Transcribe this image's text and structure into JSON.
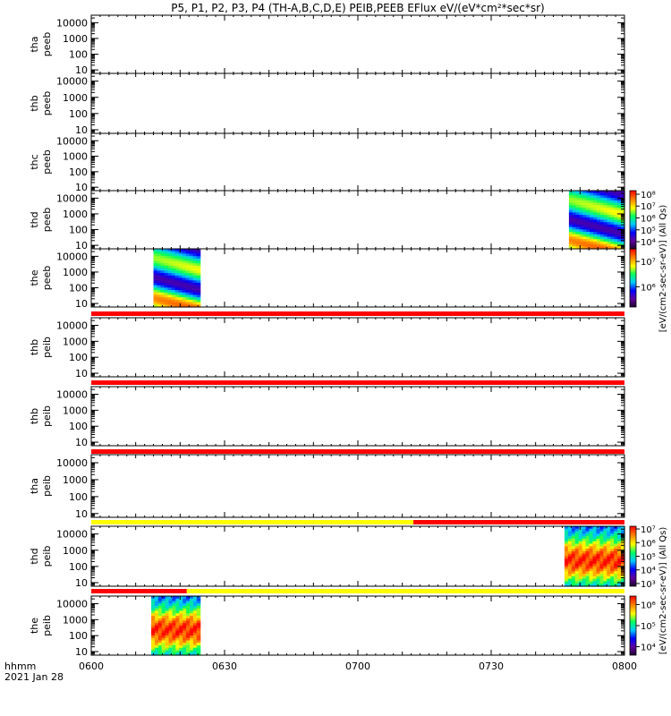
{
  "title": "P5, P1, P2, P3, P4 (TH-A,B,C,D,E) PEIB,PEEB EFlux eV/(eV*cm²*sec*sr)",
  "chart_data": {
    "type": "heatmap",
    "title": "P5, P1, P2, P3, P4 (TH-A,B,C,D,E) PEIB,PEEB EFlux eV/(eV*cm²*sec*sr)",
    "x_ticks": [
      "0600",
      "0630",
      "0700",
      "0730",
      "0800"
    ],
    "x_label_top": "hhmm",
    "x_label_bottom": "2021 Jan 28",
    "x_range_minutes": [
      0,
      120
    ],
    "y_ticks": [
      "10",
      "100",
      "1000",
      "10000"
    ],
    "y_scale": "log",
    "panels": [
      {
        "label": "tha peeb",
        "line1": "tha",
        "line2": "peeb",
        "data": []
      },
      {
        "label": "thb peeb",
        "line1": "thb",
        "line2": "peeb",
        "data": []
      },
      {
        "label": "thc peeb",
        "line1": "thc",
        "line2": "peeb",
        "data": []
      },
      {
        "label": "thd peeb",
        "line1": "thd",
        "line2": "peeb",
        "data": [
          {
            "start_min": 107.5,
            "end_min": 120,
            "colorbar": "cb1"
          }
        ]
      },
      {
        "label": "the peeb",
        "line1": "the",
        "line2": "peeb",
        "data": [
          {
            "start_min": 14,
            "end_min": 24.5,
            "colorbar": "cb2"
          }
        ]
      },
      {
        "label": "thb peib",
        "line1": "thb",
        "line2": "peib",
        "data": []
      },
      {
        "label": "thb peib",
        "line1": "thb",
        "line2": "peib",
        "data": []
      },
      {
        "label": "tha peib",
        "line1": "tha",
        "line2": "peib",
        "data": []
      },
      {
        "label": "thd peib",
        "line1": "thd",
        "line2": "peib",
        "data": [
          {
            "start_min": 106.5,
            "end_min": 120,
            "colorbar": "cb3"
          }
        ]
      },
      {
        "label": "the peib",
        "line1": "the",
        "line2": "peib",
        "data": [
          {
            "start_min": 13.5,
            "end_min": 24.5,
            "colorbar": "cb4"
          }
        ]
      }
    ],
    "mode_bars": [
      {
        "after_panel": 5,
        "segments": [
          {
            "start_min": 0,
            "end_min": 120,
            "color": "#ff0000"
          }
        ]
      },
      {
        "after_panel": 6,
        "segments": [
          {
            "start_min": 0,
            "end_min": 120,
            "color": "#ff0000"
          }
        ]
      },
      {
        "after_panel": 7,
        "segments": [
          {
            "start_min": 0,
            "end_min": 120,
            "color": "#ff0000"
          }
        ]
      },
      {
        "after_panel": 8,
        "segments": [
          {
            "start_min": 0,
            "end_min": 72.5,
            "color": "#ffff00"
          },
          {
            "start_min": 72.5,
            "end_min": 120,
            "color": "#ff0000"
          }
        ]
      },
      {
        "after_panel": 9,
        "segments": [
          {
            "start_min": 0,
            "end_min": 21.5,
            "color": "#ff0000"
          },
          {
            "start_min": 21.5,
            "end_min": 120,
            "color": "#ffff00"
          }
        ]
      }
    ],
    "colorbars": [
      {
        "id": "cb1",
        "ticks": [
          "10⁴",
          "10⁵",
          "10⁶",
          "10⁷",
          "10⁸"
        ],
        "log_min": 3.4,
        "log_max": 8.3
      },
      {
        "id": "cb2",
        "ticks": [
          "10⁶",
          "10⁷"
        ],
        "log_min": 5.2,
        "log_max": 7.5
      },
      {
        "id": "cb3",
        "ticks": [
          "10³",
          "10⁴",
          "10⁵",
          "10⁶",
          "10⁷"
        ],
        "log_min": 2.8,
        "log_max": 7.2
      },
      {
        "id": "cb4",
        "ticks": [
          "10⁴",
          "10⁵",
          "10⁶"
        ],
        "log_min": 3.6,
        "log_max": 6.4
      }
    ],
    "colorbar_labels": [
      "[eV/(cm2-sec-sr-eV)] (All Qs)",
      "[eV/(cm2-sec-sr-eV)] (All Qs)"
    ],
    "colors": {
      "background": "#ffffff",
      "axis": "#000000",
      "mode_red": "#ff0000",
      "mode_yellow": "#ffff00"
    }
  }
}
